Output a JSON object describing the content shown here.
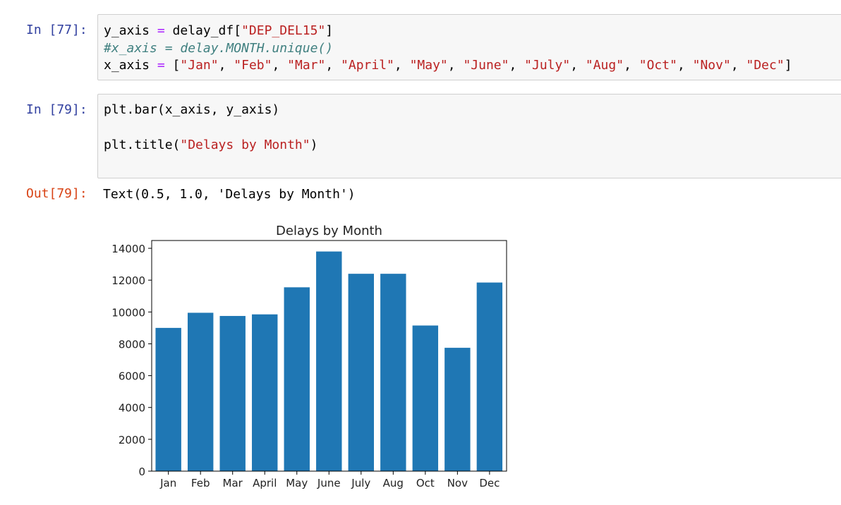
{
  "cells": [
    {
      "prompt": "In [77]:",
      "lines": [
        [
          {
            "t": "y_axis "
          },
          {
            "t": "=",
            "c": "o"
          },
          {
            "t": " delay_df["
          },
          {
            "t": "\"DEP_DEL15\"",
            "c": "s"
          },
          {
            "t": "]"
          }
        ],
        [
          {
            "t": "#x_axis = delay.MONTH.unique()",
            "c": "c"
          }
        ],
        [
          {
            "t": "x_axis "
          },
          {
            "t": "=",
            "c": "o"
          },
          {
            "t": " ["
          },
          {
            "t": "\"Jan\"",
            "c": "s"
          },
          {
            "t": ", "
          },
          {
            "t": "\"Feb\"",
            "c": "s"
          },
          {
            "t": ", "
          },
          {
            "t": "\"Mar\"",
            "c": "s"
          },
          {
            "t": ", "
          },
          {
            "t": "\"April\"",
            "c": "s"
          },
          {
            "t": ", "
          },
          {
            "t": "\"May\"",
            "c": "s"
          },
          {
            "t": ", "
          },
          {
            "t": "\"June\"",
            "c": "s"
          },
          {
            "t": ", "
          },
          {
            "t": "\"July\"",
            "c": "s"
          },
          {
            "t": ", "
          },
          {
            "t": "\"Aug\"",
            "c": "s"
          },
          {
            "t": ", "
          },
          {
            "t": "\"Oct\"",
            "c": "s"
          },
          {
            "t": ", "
          },
          {
            "t": "\"Nov\"",
            "c": "s"
          },
          {
            "t": ", "
          },
          {
            "t": "\"Dec\"",
            "c": "s"
          },
          {
            "t": "]"
          }
        ]
      ]
    },
    {
      "prompt": "In [79]:",
      "lines": [
        [
          {
            "t": "plt.bar(x_axis, y_axis)"
          }
        ],
        [
          {
            "t": ""
          }
        ],
        [
          {
            "t": "plt.title("
          },
          {
            "t": "\"Delays by Month\"",
            "c": "s"
          },
          {
            "t": ")"
          }
        ]
      ]
    }
  ],
  "output": {
    "prompt": "Out[79]:",
    "text": "Text(0.5, 1.0, 'Delays by Month')"
  },
  "colors": {
    "bar": "#1f77b4",
    "in_prompt": "#303f9f",
    "out_prompt": "#d84315"
  },
  "chart_data": {
    "type": "bar",
    "title": "Delays by Month",
    "categories": [
      "Jan",
      "Feb",
      "Mar",
      "April",
      "May",
      "June",
      "July",
      "Aug",
      "Oct",
      "Nov",
      "Dec"
    ],
    "values": [
      9000,
      9950,
      9750,
      9850,
      11550,
      13800,
      12400,
      12400,
      9150,
      7750,
      11850
    ],
    "yticks": [
      0,
      2000,
      4000,
      6000,
      8000,
      10000,
      12000,
      14000
    ],
    "ylim": [
      0,
      14490
    ],
    "grid": false,
    "xlabel": "",
    "ylabel": ""
  }
}
